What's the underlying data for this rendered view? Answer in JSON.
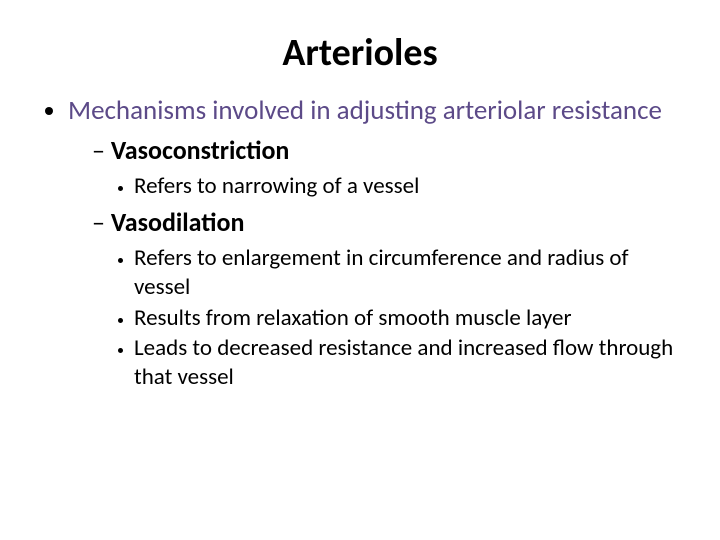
{
  "title": "Arterioles",
  "colors": {
    "background": "#ffffff",
    "title": "#000000",
    "level1_text": "#5c4a88",
    "body_text": "#000000"
  },
  "typography": {
    "font_family": "Calibri",
    "title_fontsize": 38,
    "level1_fontsize": 27,
    "level2_fontsize": 26,
    "level3_fontsize": 23,
    "title_weight": 700,
    "level2_weight": 700
  },
  "content": {
    "l1": "Mechanisms involved in adjusting arteriolar resistance",
    "sub1": {
      "heading": "Vasoconstriction",
      "points": [
        "Refers to narrowing of a vessel"
      ]
    },
    "sub2": {
      "heading": "Vasodilation",
      "points": [
        "Refers to enlargement in circumference and radius of vessel",
        "Results from relaxation of smooth muscle layer",
        "Leads to decreased resistance and increased flow through that vessel"
      ]
    }
  }
}
